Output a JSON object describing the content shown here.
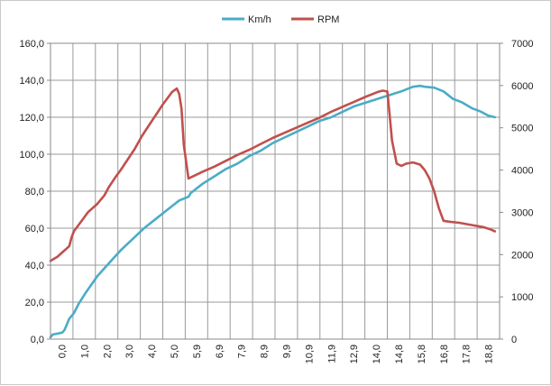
{
  "chart_data": {
    "type": "line",
    "legend_position": "top",
    "grid": true,
    "x_tick_labels": [
      "0,0",
      "1,0",
      "2,0",
      "3,0",
      "4,0",
      "5,0",
      "5,9",
      "6,9",
      "7,9",
      "8,9",
      "9,9",
      "10,9",
      "11,9",
      "12,9",
      "14,0",
      "14,8",
      "15,8",
      "16,8",
      "17,8",
      "18,8"
    ],
    "y_left": {
      "min": 0,
      "max": 160,
      "step": 20,
      "tick_labels": [
        "0,0",
        "20,0",
        "40,0",
        "60,0",
        "80,0",
        "100,0",
        "120,0",
        "140,0",
        "160,0"
      ]
    },
    "y_right": {
      "min": 0,
      "max": 7000,
      "step": 1000,
      "tick_labels": [
        "0",
        "1000",
        "2000",
        "3000",
        "4000",
        "5000",
        "6000",
        "7000"
      ]
    },
    "x_range": [
      0,
      19.2
    ],
    "series": [
      {
        "name": "Km/h",
        "axis": "left",
        "color": "#4bacc6",
        "points": [
          [
            0,
            1
          ],
          [
            0.1,
            2.5
          ],
          [
            0.3,
            3
          ],
          [
            0.5,
            3.5
          ],
          [
            0.6,
            5
          ],
          [
            0.7,
            8
          ],
          [
            0.8,
            11
          ],
          [
            1.0,
            14
          ],
          [
            1.2,
            19
          ],
          [
            1.5,
            25
          ],
          [
            2.0,
            34
          ],
          [
            2.5,
            41
          ],
          [
            3.0,
            48
          ],
          [
            3.5,
            54
          ],
          [
            4.0,
            60
          ],
          [
            4.5,
            65
          ],
          [
            5.0,
            70
          ],
          [
            5.5,
            75
          ],
          [
            5.9,
            77
          ],
          [
            6.0,
            79
          ],
          [
            6.5,
            84
          ],
          [
            7.0,
            88
          ],
          [
            7.5,
            92
          ],
          [
            8.0,
            95
          ],
          [
            8.5,
            99
          ],
          [
            9.0,
            102
          ],
          [
            9.5,
            106
          ],
          [
            10.0,
            109
          ],
          [
            10.5,
            112
          ],
          [
            11.0,
            115
          ],
          [
            11.5,
            118
          ],
          [
            12.0,
            120
          ],
          [
            12.5,
            123
          ],
          [
            13.0,
            126
          ],
          [
            13.5,
            128
          ],
          [
            14.0,
            130
          ],
          [
            14.5,
            132
          ],
          [
            15.0,
            134
          ],
          [
            15.3,
            135.5
          ],
          [
            15.5,
            136.5
          ],
          [
            15.8,
            137
          ],
          [
            16.0,
            136.5
          ],
          [
            16.4,
            136
          ],
          [
            16.8,
            134
          ],
          [
            17.2,
            130
          ],
          [
            17.6,
            128
          ],
          [
            18.0,
            125
          ],
          [
            18.4,
            123
          ],
          [
            18.7,
            121
          ],
          [
            19.0,
            120
          ]
        ]
      },
      {
        "name": "RPM",
        "axis": "right",
        "color": "#c0504d",
        "points": [
          [
            0,
            1850
          ],
          [
            0.3,
            1950
          ],
          [
            0.5,
            2050
          ],
          [
            0.7,
            2150
          ],
          [
            0.8,
            2200
          ],
          [
            0.9,
            2400
          ],
          [
            1.0,
            2550
          ],
          [
            1.2,
            2700
          ],
          [
            1.4,
            2850
          ],
          [
            1.6,
            3000
          ],
          [
            1.8,
            3100
          ],
          [
            2.0,
            3200
          ],
          [
            2.3,
            3400
          ],
          [
            2.5,
            3600
          ],
          [
            2.8,
            3850
          ],
          [
            3.0,
            4000
          ],
          [
            3.3,
            4250
          ],
          [
            3.6,
            4500
          ],
          [
            3.9,
            4800
          ],
          [
            4.2,
            5050
          ],
          [
            4.5,
            5300
          ],
          [
            4.8,
            5550
          ],
          [
            5.0,
            5700
          ],
          [
            5.2,
            5850
          ],
          [
            5.4,
            5930
          ],
          [
            5.5,
            5800
          ],
          [
            5.6,
            5450
          ],
          [
            5.7,
            4600
          ],
          [
            5.9,
            3800
          ],
          [
            6.2,
            3880
          ],
          [
            6.5,
            3960
          ],
          [
            7.0,
            4080
          ],
          [
            7.5,
            4220
          ],
          [
            8.0,
            4360
          ],
          [
            8.5,
            4480
          ],
          [
            9.0,
            4620
          ],
          [
            9.5,
            4760
          ],
          [
            10.0,
            4880
          ],
          [
            10.5,
            5000
          ],
          [
            11.0,
            5120
          ],
          [
            11.5,
            5240
          ],
          [
            12.0,
            5380
          ],
          [
            12.5,
            5500
          ],
          [
            13.0,
            5620
          ],
          [
            13.5,
            5740
          ],
          [
            14.0,
            5850
          ],
          [
            14.2,
            5880
          ],
          [
            14.4,
            5860
          ],
          [
            14.5,
            5300
          ],
          [
            14.6,
            4700
          ],
          [
            14.8,
            4150
          ],
          [
            15.0,
            4100
          ],
          [
            15.2,
            4150
          ],
          [
            15.5,
            4180
          ],
          [
            15.8,
            4130
          ],
          [
            16.0,
            4000
          ],
          [
            16.2,
            3800
          ],
          [
            16.4,
            3500
          ],
          [
            16.6,
            3100
          ],
          [
            16.8,
            2800
          ],
          [
            17.0,
            2780
          ],
          [
            17.5,
            2750
          ],
          [
            18.0,
            2700
          ],
          [
            18.5,
            2650
          ],
          [
            18.8,
            2600
          ],
          [
            19.0,
            2550
          ]
        ]
      }
    ]
  }
}
